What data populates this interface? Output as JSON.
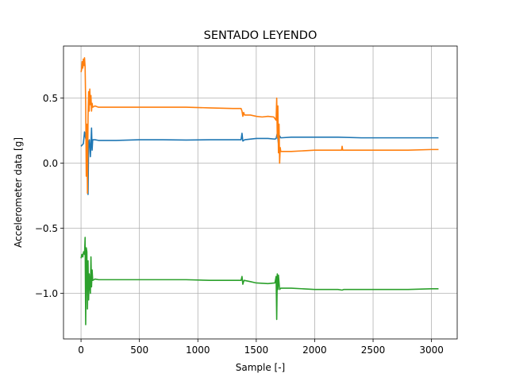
{
  "chart_data": {
    "type": "line",
    "title": "SENTADO LEYENDO",
    "xlabel": "Sample [-]",
    "ylabel": "Accelerometer data [g]",
    "xlim": [
      -150,
      3220
    ],
    "ylim": [
      -1.35,
      0.9
    ],
    "xticks": [
      0,
      500,
      1000,
      1500,
      2000,
      2500,
      3000
    ],
    "xtick_labels": [
      "0",
      "500",
      "1000",
      "1500",
      "2000",
      "2500",
      "3000"
    ],
    "yticks": [
      -1.0,
      -0.5,
      0.0,
      0.5
    ],
    "ytick_labels": [
      "−1.0",
      "−0.5",
      "0.0",
      "0.5"
    ],
    "grid": true,
    "legend": "none",
    "series": [
      {
        "color": "#1f77b4",
        "points": [
          [
            0,
            0.13
          ],
          [
            10,
            0.14
          ],
          [
            20,
            0.15
          ],
          [
            30,
            0.24
          ],
          [
            38,
            0.2
          ],
          [
            45,
            0.17
          ],
          [
            50,
            -0.08
          ],
          [
            55,
            0.15
          ],
          [
            60,
            -0.24
          ],
          [
            65,
            0.16
          ],
          [
            72,
            0.18
          ],
          [
            80,
            0.05
          ],
          [
            86,
            0.17
          ],
          [
            90,
            0.27
          ],
          [
            95,
            0.1
          ],
          [
            100,
            0.18
          ],
          [
            120,
            0.18
          ],
          [
            150,
            0.175
          ],
          [
            300,
            0.175
          ],
          [
            500,
            0.18
          ],
          [
            700,
            0.18
          ],
          [
            900,
            0.178
          ],
          [
            1100,
            0.18
          ],
          [
            1300,
            0.18
          ],
          [
            1370,
            0.18
          ],
          [
            1378,
            0.23
          ],
          [
            1385,
            0.17
          ],
          [
            1400,
            0.18
          ],
          [
            1500,
            0.19
          ],
          [
            1600,
            0.19
          ],
          [
            1660,
            0.185
          ],
          [
            1670,
            0.19
          ],
          [
            1680,
            0.23
          ],
          [
            1690,
            0.15
          ],
          [
            1700,
            0.21
          ],
          [
            1710,
            0.195
          ],
          [
            1800,
            0.2
          ],
          [
            2000,
            0.2
          ],
          [
            2200,
            0.2
          ],
          [
            2400,
            0.195
          ],
          [
            2600,
            0.195
          ],
          [
            2800,
            0.195
          ],
          [
            3000,
            0.195
          ],
          [
            3060,
            0.195
          ]
        ]
      },
      {
        "color": "#ff7f0e",
        "points": [
          [
            0,
            0.7
          ],
          [
            5,
            0.72
          ],
          [
            10,
            0.78
          ],
          [
            15,
            0.73
          ],
          [
            20,
            0.8
          ],
          [
            25,
            0.75
          ],
          [
            30,
            0.81
          ],
          [
            35,
            0.74
          ],
          [
            40,
            0.45
          ],
          [
            45,
            -0.1
          ],
          [
            50,
            0.3
          ],
          [
            55,
            -0.23
          ],
          [
            60,
            0.35
          ],
          [
            65,
            0.55
          ],
          [
            70,
            0.4
          ],
          [
            75,
            0.57
          ],
          [
            80,
            0.45
          ],
          [
            85,
            0.52
          ],
          [
            90,
            0.4
          ],
          [
            95,
            0.46
          ],
          [
            100,
            0.43
          ],
          [
            120,
            0.44
          ],
          [
            150,
            0.43
          ],
          [
            300,
            0.43
          ],
          [
            500,
            0.43
          ],
          [
            700,
            0.43
          ],
          [
            900,
            0.43
          ],
          [
            1100,
            0.425
          ],
          [
            1300,
            0.42
          ],
          [
            1370,
            0.42
          ],
          [
            1378,
            0.4
          ],
          [
            1385,
            0.36
          ],
          [
            1392,
            0.39
          ],
          [
            1400,
            0.37
          ],
          [
            1450,
            0.37
          ],
          [
            1500,
            0.36
          ],
          [
            1550,
            0.355
          ],
          [
            1600,
            0.36
          ],
          [
            1650,
            0.355
          ],
          [
            1670,
            0.33
          ],
          [
            1675,
            0.5
          ],
          [
            1680,
            0.2
          ],
          [
            1685,
            0.44
          ],
          [
            1690,
            0.08
          ],
          [
            1695,
            0.3
          ],
          [
            1700,
            0.0
          ],
          [
            1705,
            0.12
          ],
          [
            1710,
            0.09
          ],
          [
            1800,
            0.09
          ],
          [
            2000,
            0.1
          ],
          [
            2200,
            0.1
          ],
          [
            2230,
            0.1
          ],
          [
            2235,
            0.13
          ],
          [
            2240,
            0.1
          ],
          [
            2400,
            0.1
          ],
          [
            2600,
            0.1
          ],
          [
            2800,
            0.1
          ],
          [
            3000,
            0.105
          ],
          [
            3060,
            0.105
          ]
        ]
      },
      {
        "color": "#2ca02c",
        "points": [
          [
            0,
            -0.73
          ],
          [
            8,
            -0.7
          ],
          [
            15,
            -0.72
          ],
          [
            22,
            -0.68
          ],
          [
            30,
            -0.7
          ],
          [
            35,
            -0.57
          ],
          [
            40,
            -1.24
          ],
          [
            45,
            -0.65
          ],
          [
            50,
            -0.68
          ],
          [
            55,
            -1.12
          ],
          [
            60,
            -0.75
          ],
          [
            65,
            -1.05
          ],
          [
            70,
            -0.85
          ],
          [
            75,
            -0.93
          ],
          [
            80,
            -1.0
          ],
          [
            85,
            -0.72
          ],
          [
            90,
            -0.95
          ],
          [
            95,
            -0.82
          ],
          [
            100,
            -0.9
          ],
          [
            120,
            -0.89
          ],
          [
            150,
            -0.895
          ],
          [
            300,
            -0.895
          ],
          [
            500,
            -0.895
          ],
          [
            700,
            -0.895
          ],
          [
            900,
            -0.895
          ],
          [
            1100,
            -0.9
          ],
          [
            1300,
            -0.9
          ],
          [
            1370,
            -0.9
          ],
          [
            1378,
            -0.87
          ],
          [
            1385,
            -0.93
          ],
          [
            1395,
            -0.9
          ],
          [
            1450,
            -0.91
          ],
          [
            1500,
            -0.92
          ],
          [
            1600,
            -0.925
          ],
          [
            1660,
            -0.92
          ],
          [
            1670,
            -0.87
          ],
          [
            1675,
            -1.2
          ],
          [
            1680,
            -0.85
          ],
          [
            1685,
            -0.97
          ],
          [
            1690,
            -0.86
          ],
          [
            1700,
            -0.97
          ],
          [
            1710,
            -0.96
          ],
          [
            1800,
            -0.96
          ],
          [
            2000,
            -0.97
          ],
          [
            2200,
            -0.97
          ],
          [
            2235,
            -0.975
          ],
          [
            2250,
            -0.97
          ],
          [
            2400,
            -0.97
          ],
          [
            2600,
            -0.97
          ],
          [
            2800,
            -0.97
          ],
          [
            3000,
            -0.965
          ],
          [
            3060,
            -0.965
          ]
        ]
      }
    ]
  }
}
